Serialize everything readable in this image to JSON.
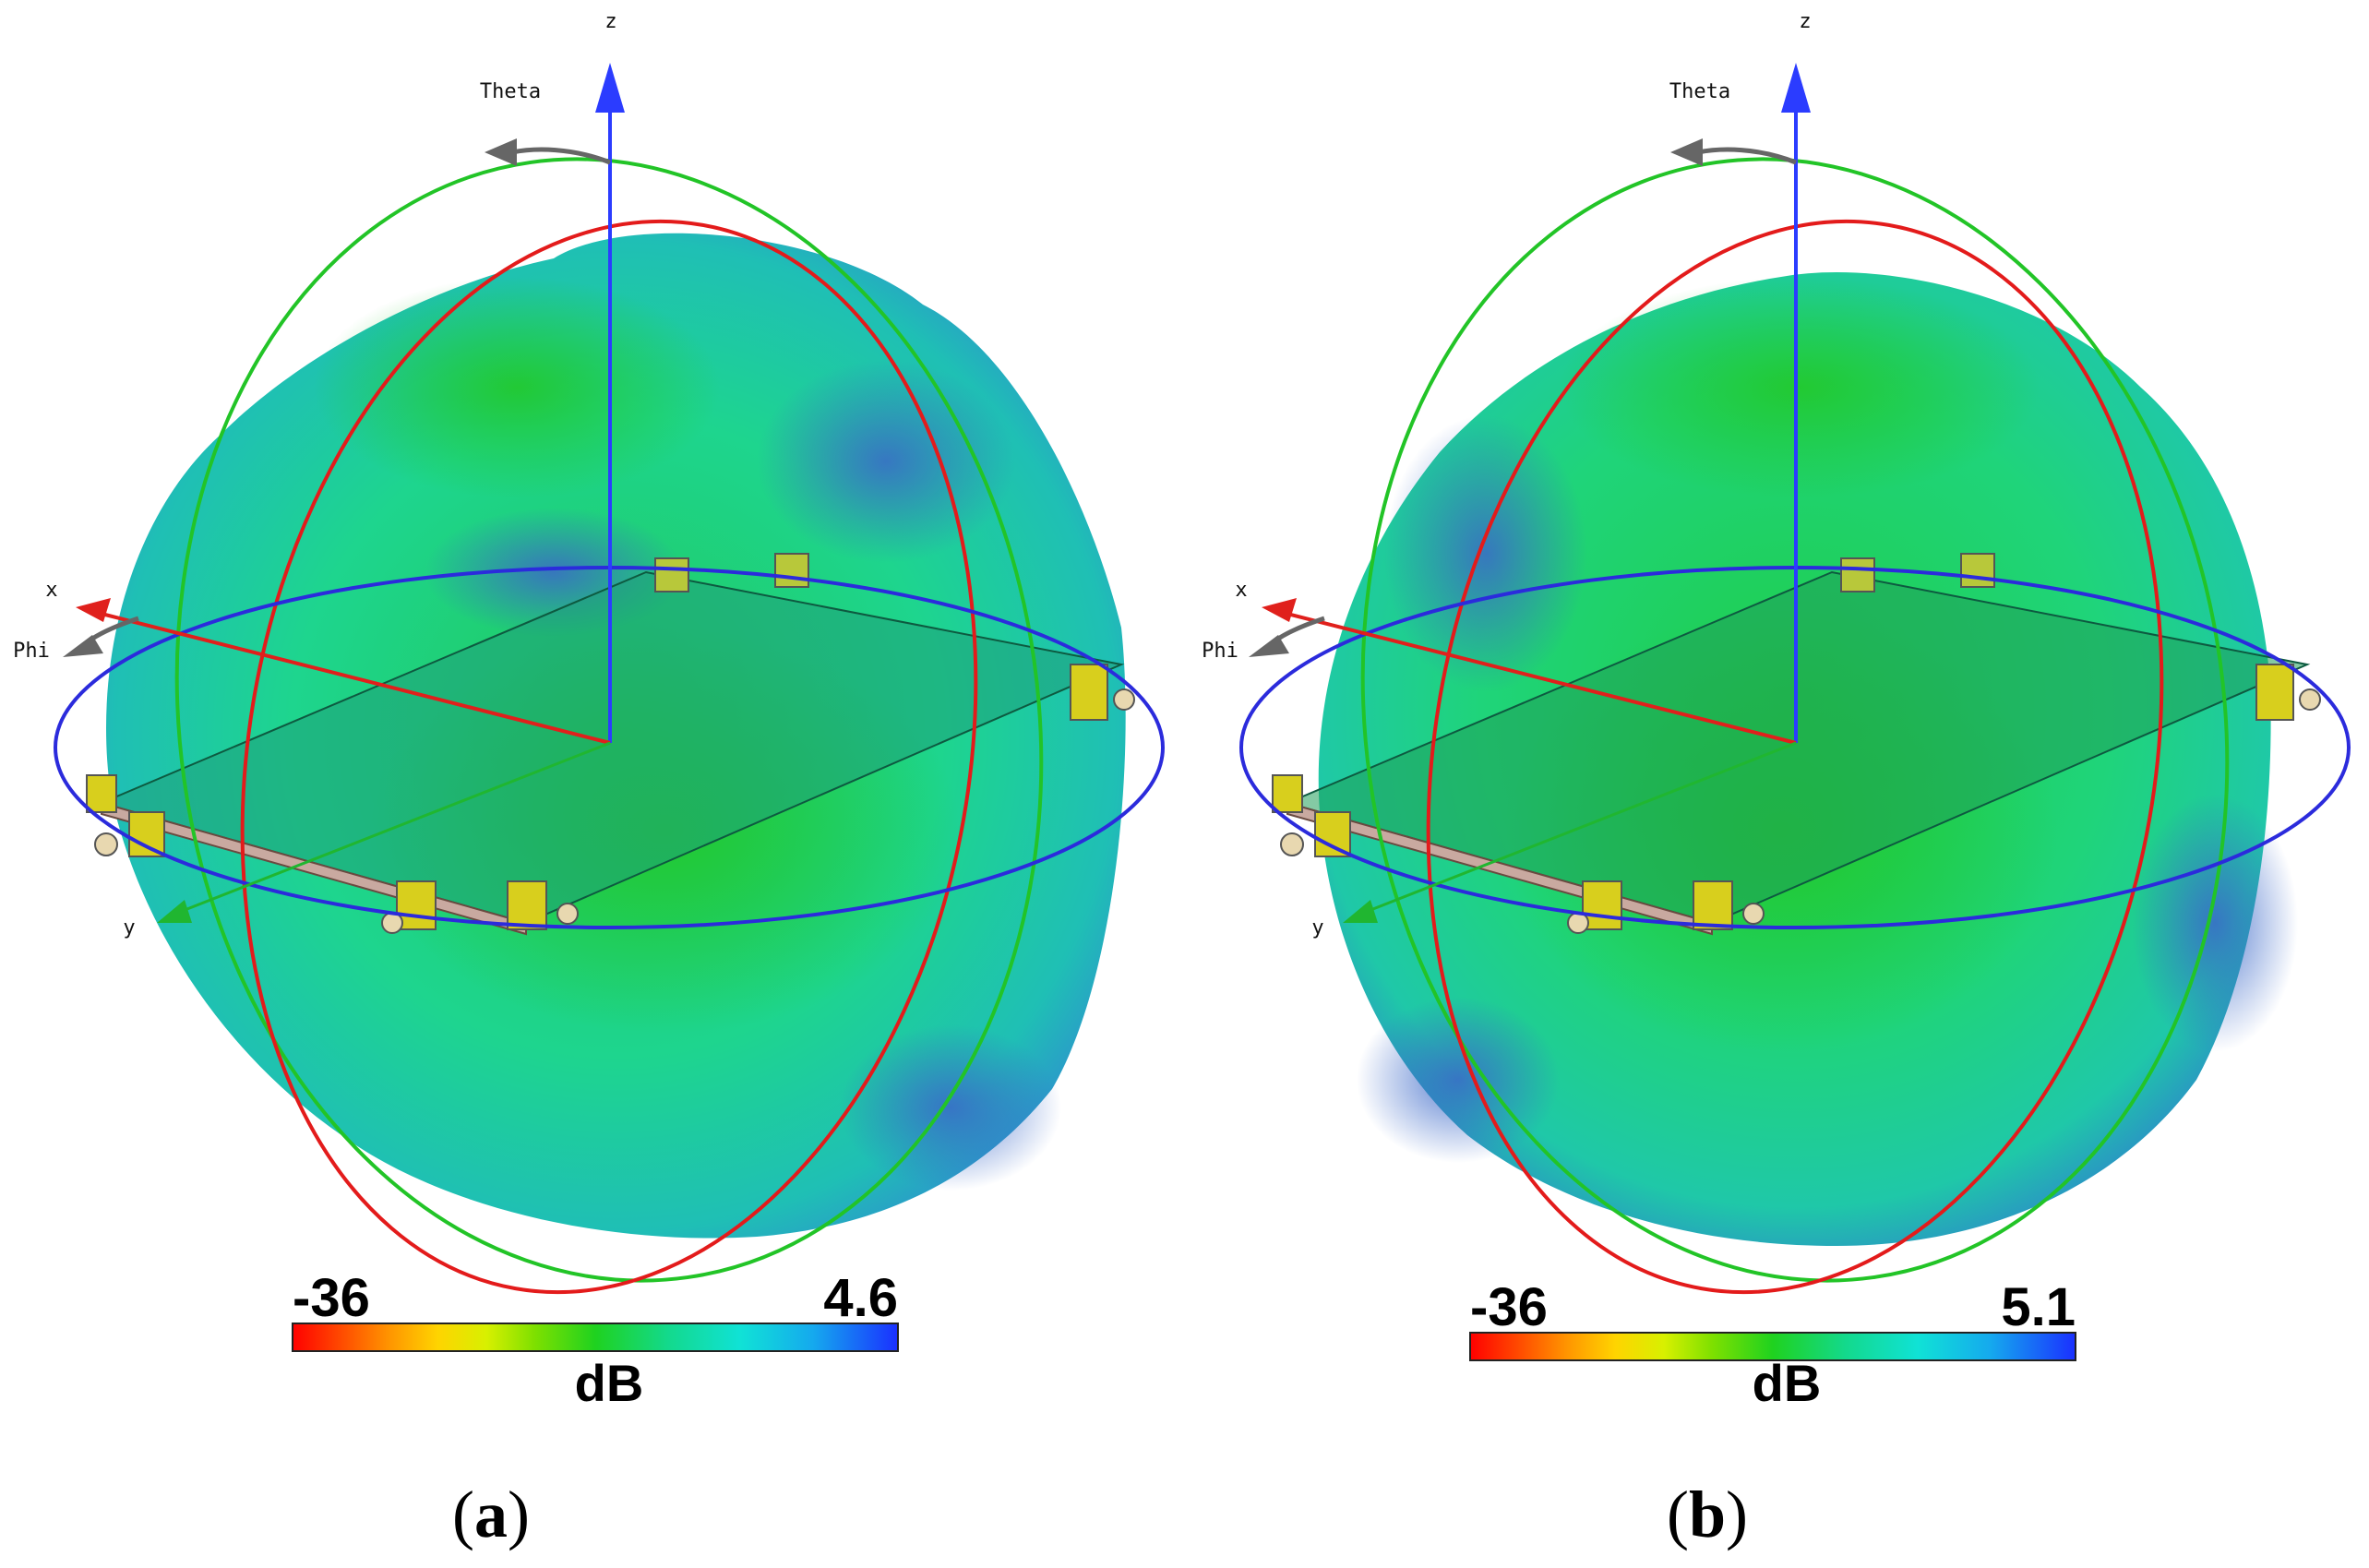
{
  "panels": [
    {
      "id": "a",
      "caption_open": "(",
      "caption_letter": "a",
      "caption_close": ")",
      "axes": {
        "z": "z",
        "x": "x",
        "y": "y",
        "theta": "Theta",
        "phi": "Phi"
      },
      "scale": {
        "min": "-36",
        "max": "4.6",
        "unit": "dB"
      }
    },
    {
      "id": "b",
      "caption_open": "(",
      "caption_letter": "b",
      "caption_close": ")",
      "axes": {
        "z": "z",
        "x": "x",
        "y": "y",
        "theta": "Theta",
        "phi": "Phi"
      },
      "scale": {
        "min": "-36",
        "max": "5.1",
        "unit": "dB"
      }
    }
  ],
  "colors": {
    "pattern_green": "#22c53a",
    "pattern_teal": "#1fcf9c",
    "pattern_blue": "#2a6fd6",
    "z_axis": "#2b3cff",
    "x_axis": "#e0201c",
    "y_axis": "#20b630",
    "ring_red": "#e31b1b",
    "ring_green": "#22c427",
    "ring_blue": "#2b2bdc",
    "connector": "#d8cf1d"
  },
  "colormap": [
    "#ff0000",
    "#ff3b00",
    "#ff7a00",
    "#ffb300",
    "#ffe600",
    "#c8f000",
    "#7ae000",
    "#1fd21f",
    "#13d66a",
    "#12dcb0",
    "#10e4e4",
    "#14b4ee",
    "#1678f0",
    "#1a3cff"
  ]
}
